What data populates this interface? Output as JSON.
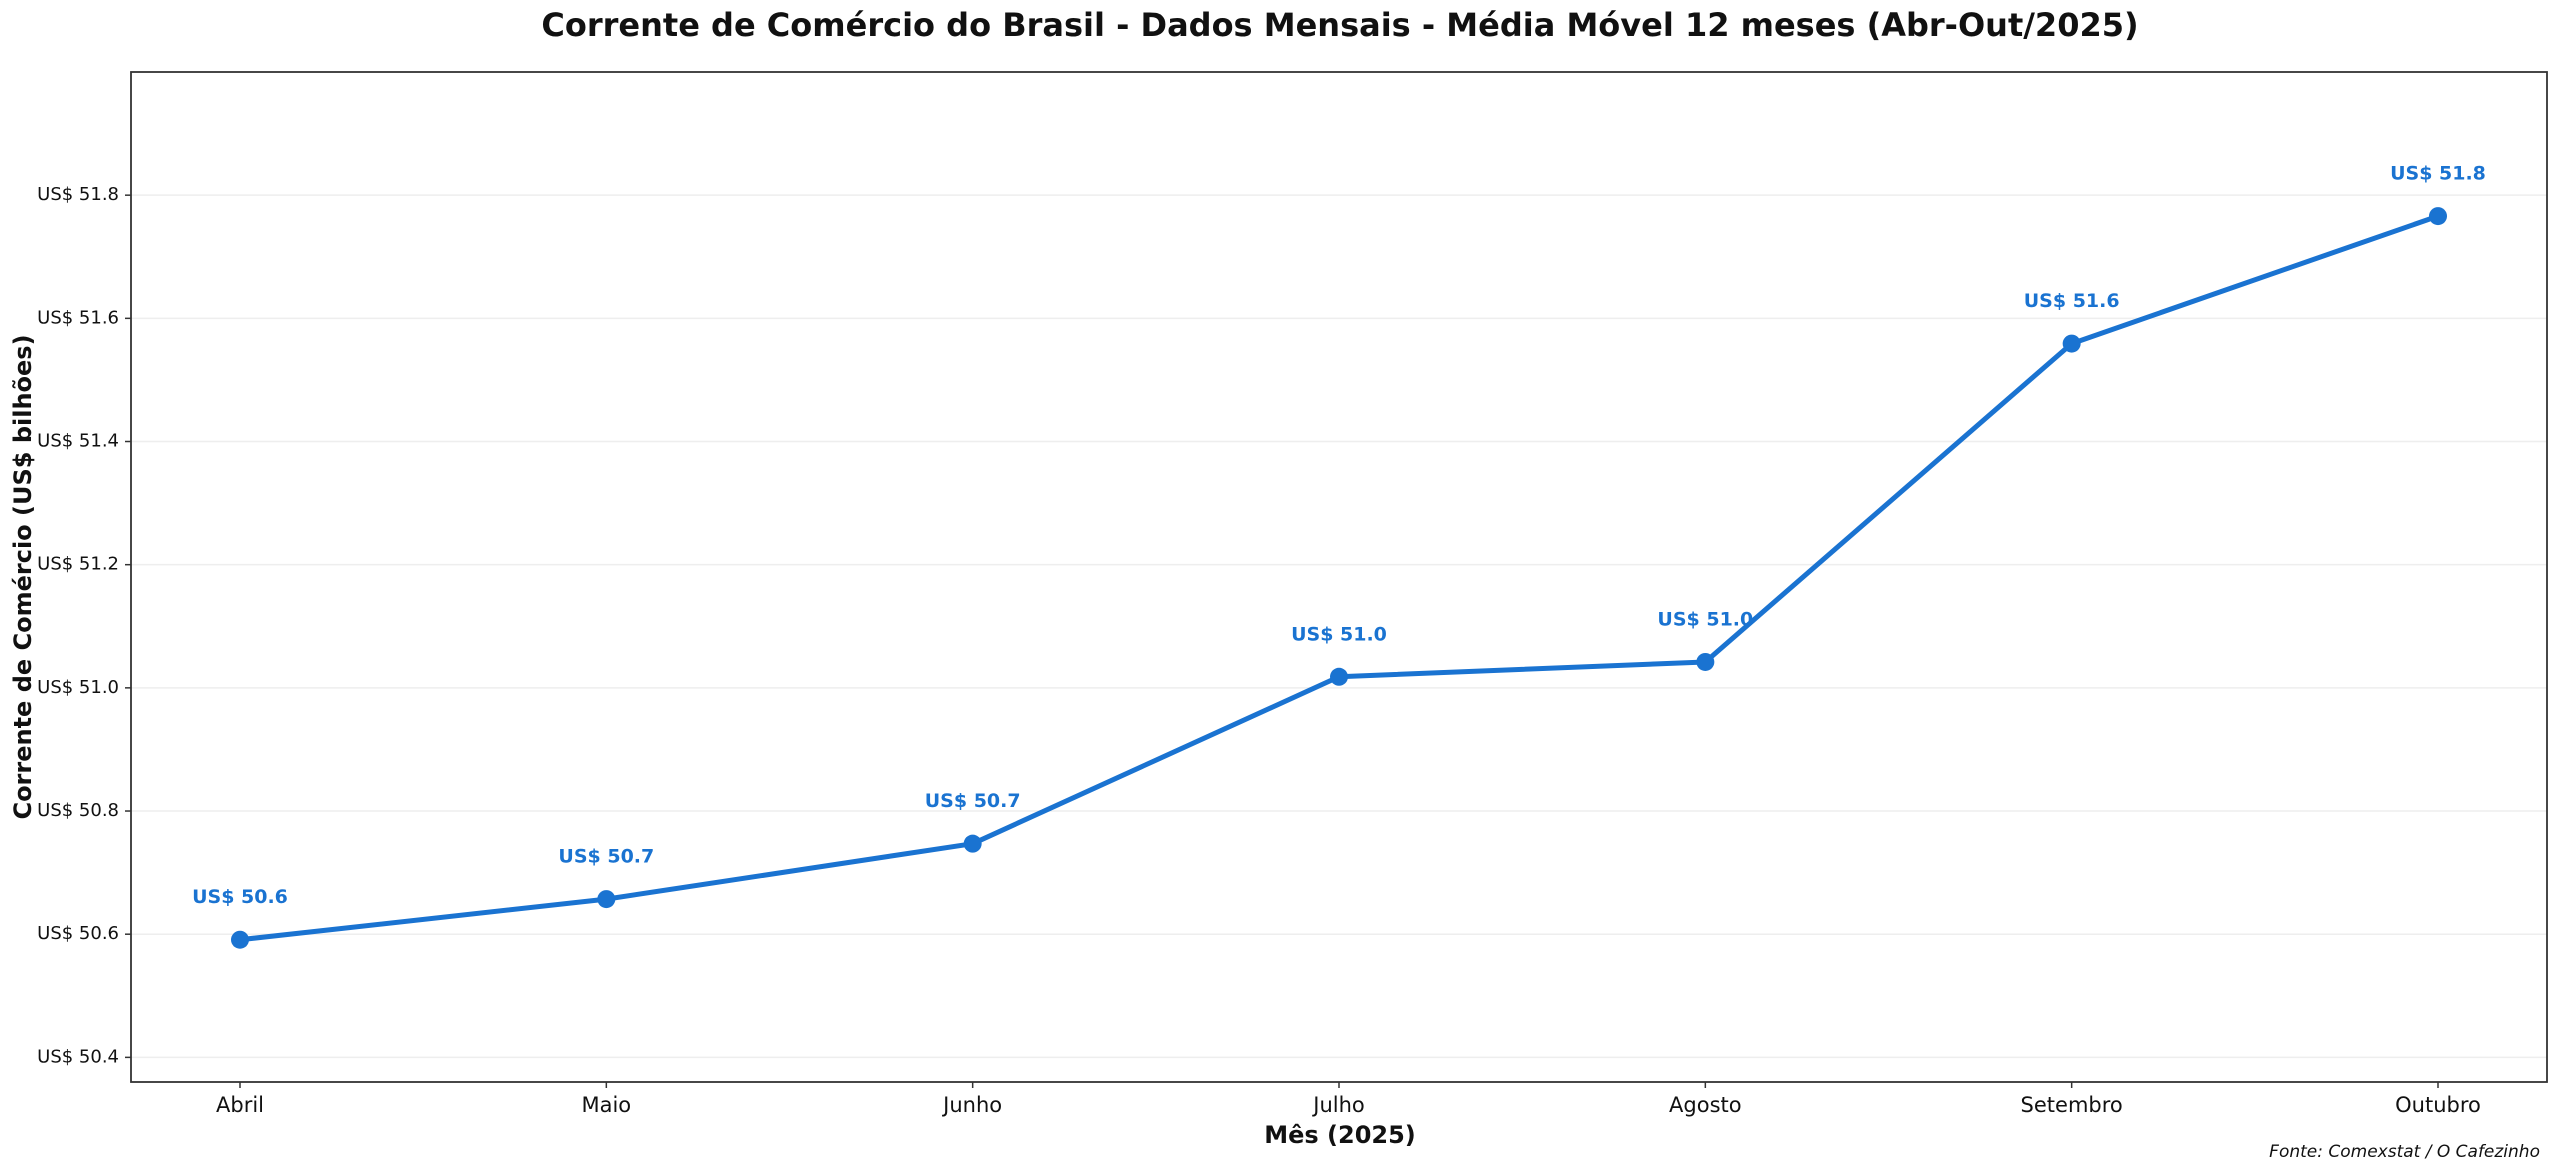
{
  "chart_data": {
    "type": "line",
    "title": "Corrente de Comércio do Brasil - Dados Mensais - Média Móvel 12 meses (Abr-Out/2025)",
    "x_label": "Mês (2025)",
    "y_label": "Corrente de Comércio (US$ bilhões)",
    "source": "Fonte: Comexstat / O Cafezinho",
    "categories": [
      "Abril",
      "Maio",
      "Junho",
      "Julho",
      "Agosto",
      "Setembro",
      "Outubro"
    ],
    "series": [
      {
        "name": "Corrente de Comércio",
        "color": "#1a73d1",
        "values": [
          50.591,
          50.657,
          50.747,
          51.018,
          51.042,
          51.559,
          51.766
        ],
        "value_labels": [
          "US$ 50.6",
          "US$ 50.7",
          "US$ 50.7",
          "US$ 51.0",
          "US$ 51.0",
          "US$ 51.6",
          "US$ 51.8"
        ]
      }
    ],
    "ylim": [
      50.36,
      52.0
    ],
    "yticks": [
      {
        "value": 50.4,
        "label": "US$ 50.4"
      },
      {
        "value": 50.6,
        "label": "US$ 50.6"
      },
      {
        "value": 50.8,
        "label": "US$ 50.8"
      },
      {
        "value": 51.0,
        "label": "US$ 51.0"
      },
      {
        "value": 51.2,
        "label": "US$ 51.2"
      },
      {
        "value": 51.4,
        "label": "US$ 51.4"
      },
      {
        "value": 51.6,
        "label": "US$ 51.6"
      },
      {
        "value": 51.8,
        "label": "US$ 51.8"
      }
    ],
    "grid": true
  }
}
